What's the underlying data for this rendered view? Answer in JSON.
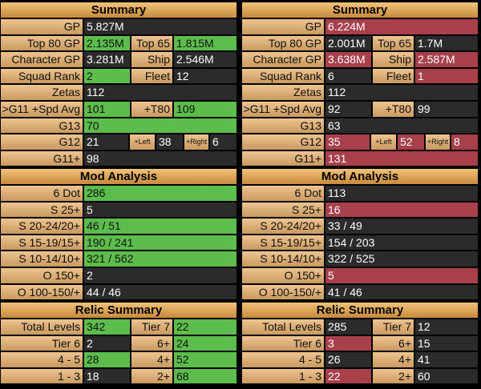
{
  "panels": [
    {
      "sections": [
        {
          "title": "Summary",
          "rows": [
            [
              "GP",
              "5.827M"
            ],
            [
              "Top 80 GP",
              "2.135M",
              "Top 65",
              "1.815M"
            ],
            [
              "Character GP",
              "3.281M",
              "Ship",
              "2.546M"
            ],
            [
              "Squad Rank",
              "2",
              "Fleet",
              "12"
            ],
            [
              "Zetas",
              "112"
            ],
            [
              ">G11 +Spd Avg",
              "101",
              "+T80",
              "109"
            ],
            [
              "G13",
              "70"
            ],
            [
              "G12",
              "21",
              "+Left",
              "38",
              "+Right",
              "6"
            ],
            [
              "G11+",
              "98"
            ]
          ]
        },
        {
          "title": "Mod Analysis",
          "rows": [
            [
              "6 Dot",
              "286"
            ],
            [
              "S 25+",
              "5"
            ],
            [
              "S 20-24/20+",
              "46 / 51"
            ],
            [
              "S 15-19/15+",
              "190 / 241"
            ],
            [
              "S 10-14/10+",
              "321 / 562"
            ],
            [
              "O 150+",
              "2"
            ],
            [
              "O 100-150/+",
              "44 / 46"
            ]
          ]
        },
        {
          "title": "Relic Summary",
          "rows": [
            [
              "Total Levels",
              "342",
              "Tier 7",
              "22"
            ],
            [
              "Tier 6",
              "2",
              "6+",
              "24"
            ],
            [
              "4 - 5",
              "28",
              "4+",
              "52"
            ],
            [
              "1 - 3",
              "18",
              "2+",
              "68"
            ]
          ]
        }
      ]
    },
    {
      "sections": [
        {
          "title": "Summary",
          "rows": [
            [
              "GP",
              "6.224M"
            ],
            [
              "Top 80 GP",
              "2.001M",
              "Top 65",
              "1.7M"
            ],
            [
              "Character GP",
              "3.638M",
              "Ship",
              "2.587M"
            ],
            [
              "Squad Rank",
              "6",
              "Fleet",
              "1"
            ],
            [
              "Zetas",
              "112"
            ],
            [
              ">G11 +Spd Avg",
              "92",
              "+T80",
              "99"
            ],
            [
              "G13",
              "63"
            ],
            [
              "G12",
              "35",
              "+Left",
              "52",
              "+Right",
              "8"
            ],
            [
              "G11+",
              "131"
            ]
          ]
        },
        {
          "title": "Mod Analysis",
          "rows": [
            [
              "6 Dot",
              "113"
            ],
            [
              "S 25+",
              "16"
            ],
            [
              "S 20-24/20+",
              "33 / 49"
            ],
            [
              "S 15-19/15+",
              "154 / 203"
            ],
            [
              "S 10-14/10+",
              "322 / 525"
            ],
            [
              "O 150+",
              "5"
            ],
            [
              "O 100-150/+",
              "41 / 46"
            ]
          ]
        },
        {
          "title": "Relic Summary",
          "rows": [
            [
              "Total Levels",
              "285",
              "Tier 7",
              "12"
            ],
            [
              "Tier 6",
              "3",
              "6+",
              "15"
            ],
            [
              "4 - 5",
              "26",
              "4+",
              "41"
            ],
            [
              "1 - 3",
              "22",
              "2+",
              "60"
            ]
          ]
        }
      ]
    }
  ]
}
